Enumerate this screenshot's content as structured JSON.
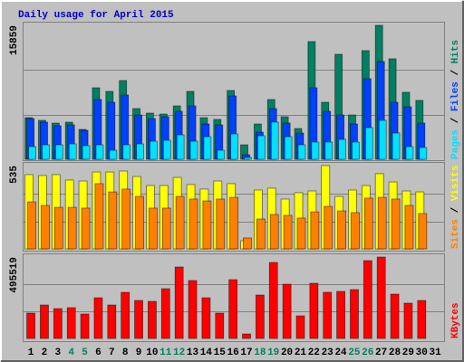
{
  "chart_data": [
    {
      "type": "bar",
      "title": "Daily usage for April 2015",
      "legend_separator": " / ",
      "ylim": [
        0,
        15859
      ],
      "yticks": [
        15859
      ],
      "series": [
        {
          "name": "Hits",
          "color": "#008060",
          "values": [
            4931,
            4610,
            4288,
            4395,
            3538,
            8469,
            8040,
            9326,
            6003,
            5467,
            5360,
            6325,
            8040,
            4931,
            4717,
            8147,
            1715,
            4181,
            7075,
            5038,
            3645,
            13936,
            6754,
            12435,
            5253,
            12864,
            15859,
            11899,
            7933,
            6968,
            null
          ]
        },
        {
          "name": "Files",
          "color": "#0040ff",
          "values": [
            4824,
            4395,
            3966,
            4074,
            3430,
            7075,
            6754,
            7611,
            5253,
            4824,
            5038,
            5682,
            6325,
            4181,
            4074,
            7504,
            536,
            3216,
            6003,
            4288,
            3109,
            8469,
            5682,
            5253,
            4181,
            9541,
            11578,
            6754,
            6218,
            4288,
            null
          ]
        },
        {
          "name": "Pages",
          "color": "#00e0ff",
          "values": [
            1501,
            1715,
            1715,
            1822,
            1608,
            1715,
            1072,
            1715,
            1822,
            2144,
            2251,
            2894,
            2144,
            2680,
            1072,
            3002,
            214,
            2787,
            4395,
            2680,
            1715,
            2037,
            2037,
            2358,
            2037,
            3752,
            4610,
            3109,
            1501,
            1394,
            null
          ]
        }
      ]
    },
    {
      "type": "bar",
      "legend_separator": " / ",
      "ylim": [
        0,
        535
      ],
      "yticks": [
        535
      ],
      "series": [
        {
          "name": "Visits",
          "color": "#ffff00",
          "values": [
            477,
            471,
            477,
            442,
            436,
            494,
            494,
            500,
            465,
            407,
            407,
            459,
            413,
            384,
            436,
            419,
            52,
            378,
            390,
            320,
            361,
            372,
            535,
            337,
            378,
            407,
            483,
            430,
            372,
            366,
            null
          ]
        },
        {
          "name": "Sites",
          "color": "#ff8000",
          "values": [
            302,
            279,
            267,
            267,
            262,
            419,
            366,
            384,
            337,
            262,
            262,
            337,
            320,
            308,
            320,
            331,
            70,
            192,
            221,
            215,
            198,
            238,
            273,
            244,
            233,
            326,
            331,
            320,
            279,
            227,
            null
          ]
        }
      ]
    },
    {
      "type": "bar",
      "ylim": [
        0,
        495519
      ],
      "yticks": [
        495519
      ],
      "series": [
        {
          "name": "KBytes",
          "color": "#ff0000",
          "values": [
            154168,
            203722,
            181698,
            187204,
            148662,
            247770,
            203722,
            280806,
            231252,
            225746,
            302830,
            434974,
            352384,
            247770,
            154168,
            357890,
            27530,
            264288,
            462504,
            330360,
            137650,
            335866,
            280806,
            286312,
            297324,
            473516,
            495519,
            269794,
            214734,
            231252,
            null
          ]
        }
      ],
      "categories": [
        "1",
        "2",
        "3",
        "4",
        "5",
        "6",
        "7",
        "8",
        "9",
        "10",
        "11",
        "12",
        "13",
        "14",
        "15",
        "16",
        "17",
        "18",
        "19",
        "20",
        "21",
        "22",
        "23",
        "24",
        "25",
        "26",
        "27",
        "28",
        "29",
        "30",
        "31"
      ],
      "category_colors": [
        "#000000",
        "#000000",
        "#000000",
        "#008060",
        "#008060",
        "#000000",
        "#000000",
        "#000000",
        "#000000",
        "#000000",
        "#008060",
        "#008060",
        "#000000",
        "#000000",
        "#000000",
        "#000000",
        "#000000",
        "#008060",
        "#008060",
        "#000000",
        "#000000",
        "#000000",
        "#000000",
        "#000000",
        "#008060",
        "#008060",
        "#000000",
        "#000000",
        "#000000",
        "#000000",
        "#000000"
      ]
    }
  ]
}
